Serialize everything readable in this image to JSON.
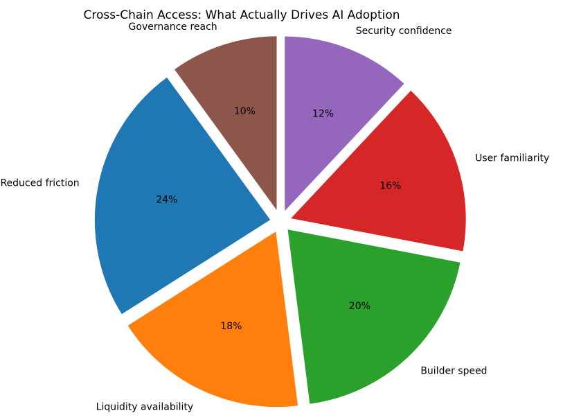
{
  "chart_data": {
    "type": "pie",
    "title": "Cross-Chain Access: What Actually Drives AI Adoption",
    "start_angle_deg": 90,
    "direction": "counterclockwise",
    "legend": "none",
    "slices": [
      {
        "label": "Governance reach",
        "value": 10,
        "pct_label": "10%",
        "color": "#8c564b"
      },
      {
        "label": "Reduced friction",
        "value": 24,
        "pct_label": "24%",
        "color": "#1f77b4"
      },
      {
        "label": "Liquidity availability",
        "value": 18,
        "pct_label": "18%",
        "color": "#ff7f0e"
      },
      {
        "label": "Builder speed",
        "value": 20,
        "pct_label": "20%",
        "color": "#2ca02c"
      },
      {
        "label": "User familiarity",
        "value": 16,
        "pct_label": "16%",
        "color": "#d62728"
      },
      {
        "label": "Security confidence",
        "value": 12,
        "pct_label": "12%",
        "color": "#9467bd"
      }
    ]
  }
}
